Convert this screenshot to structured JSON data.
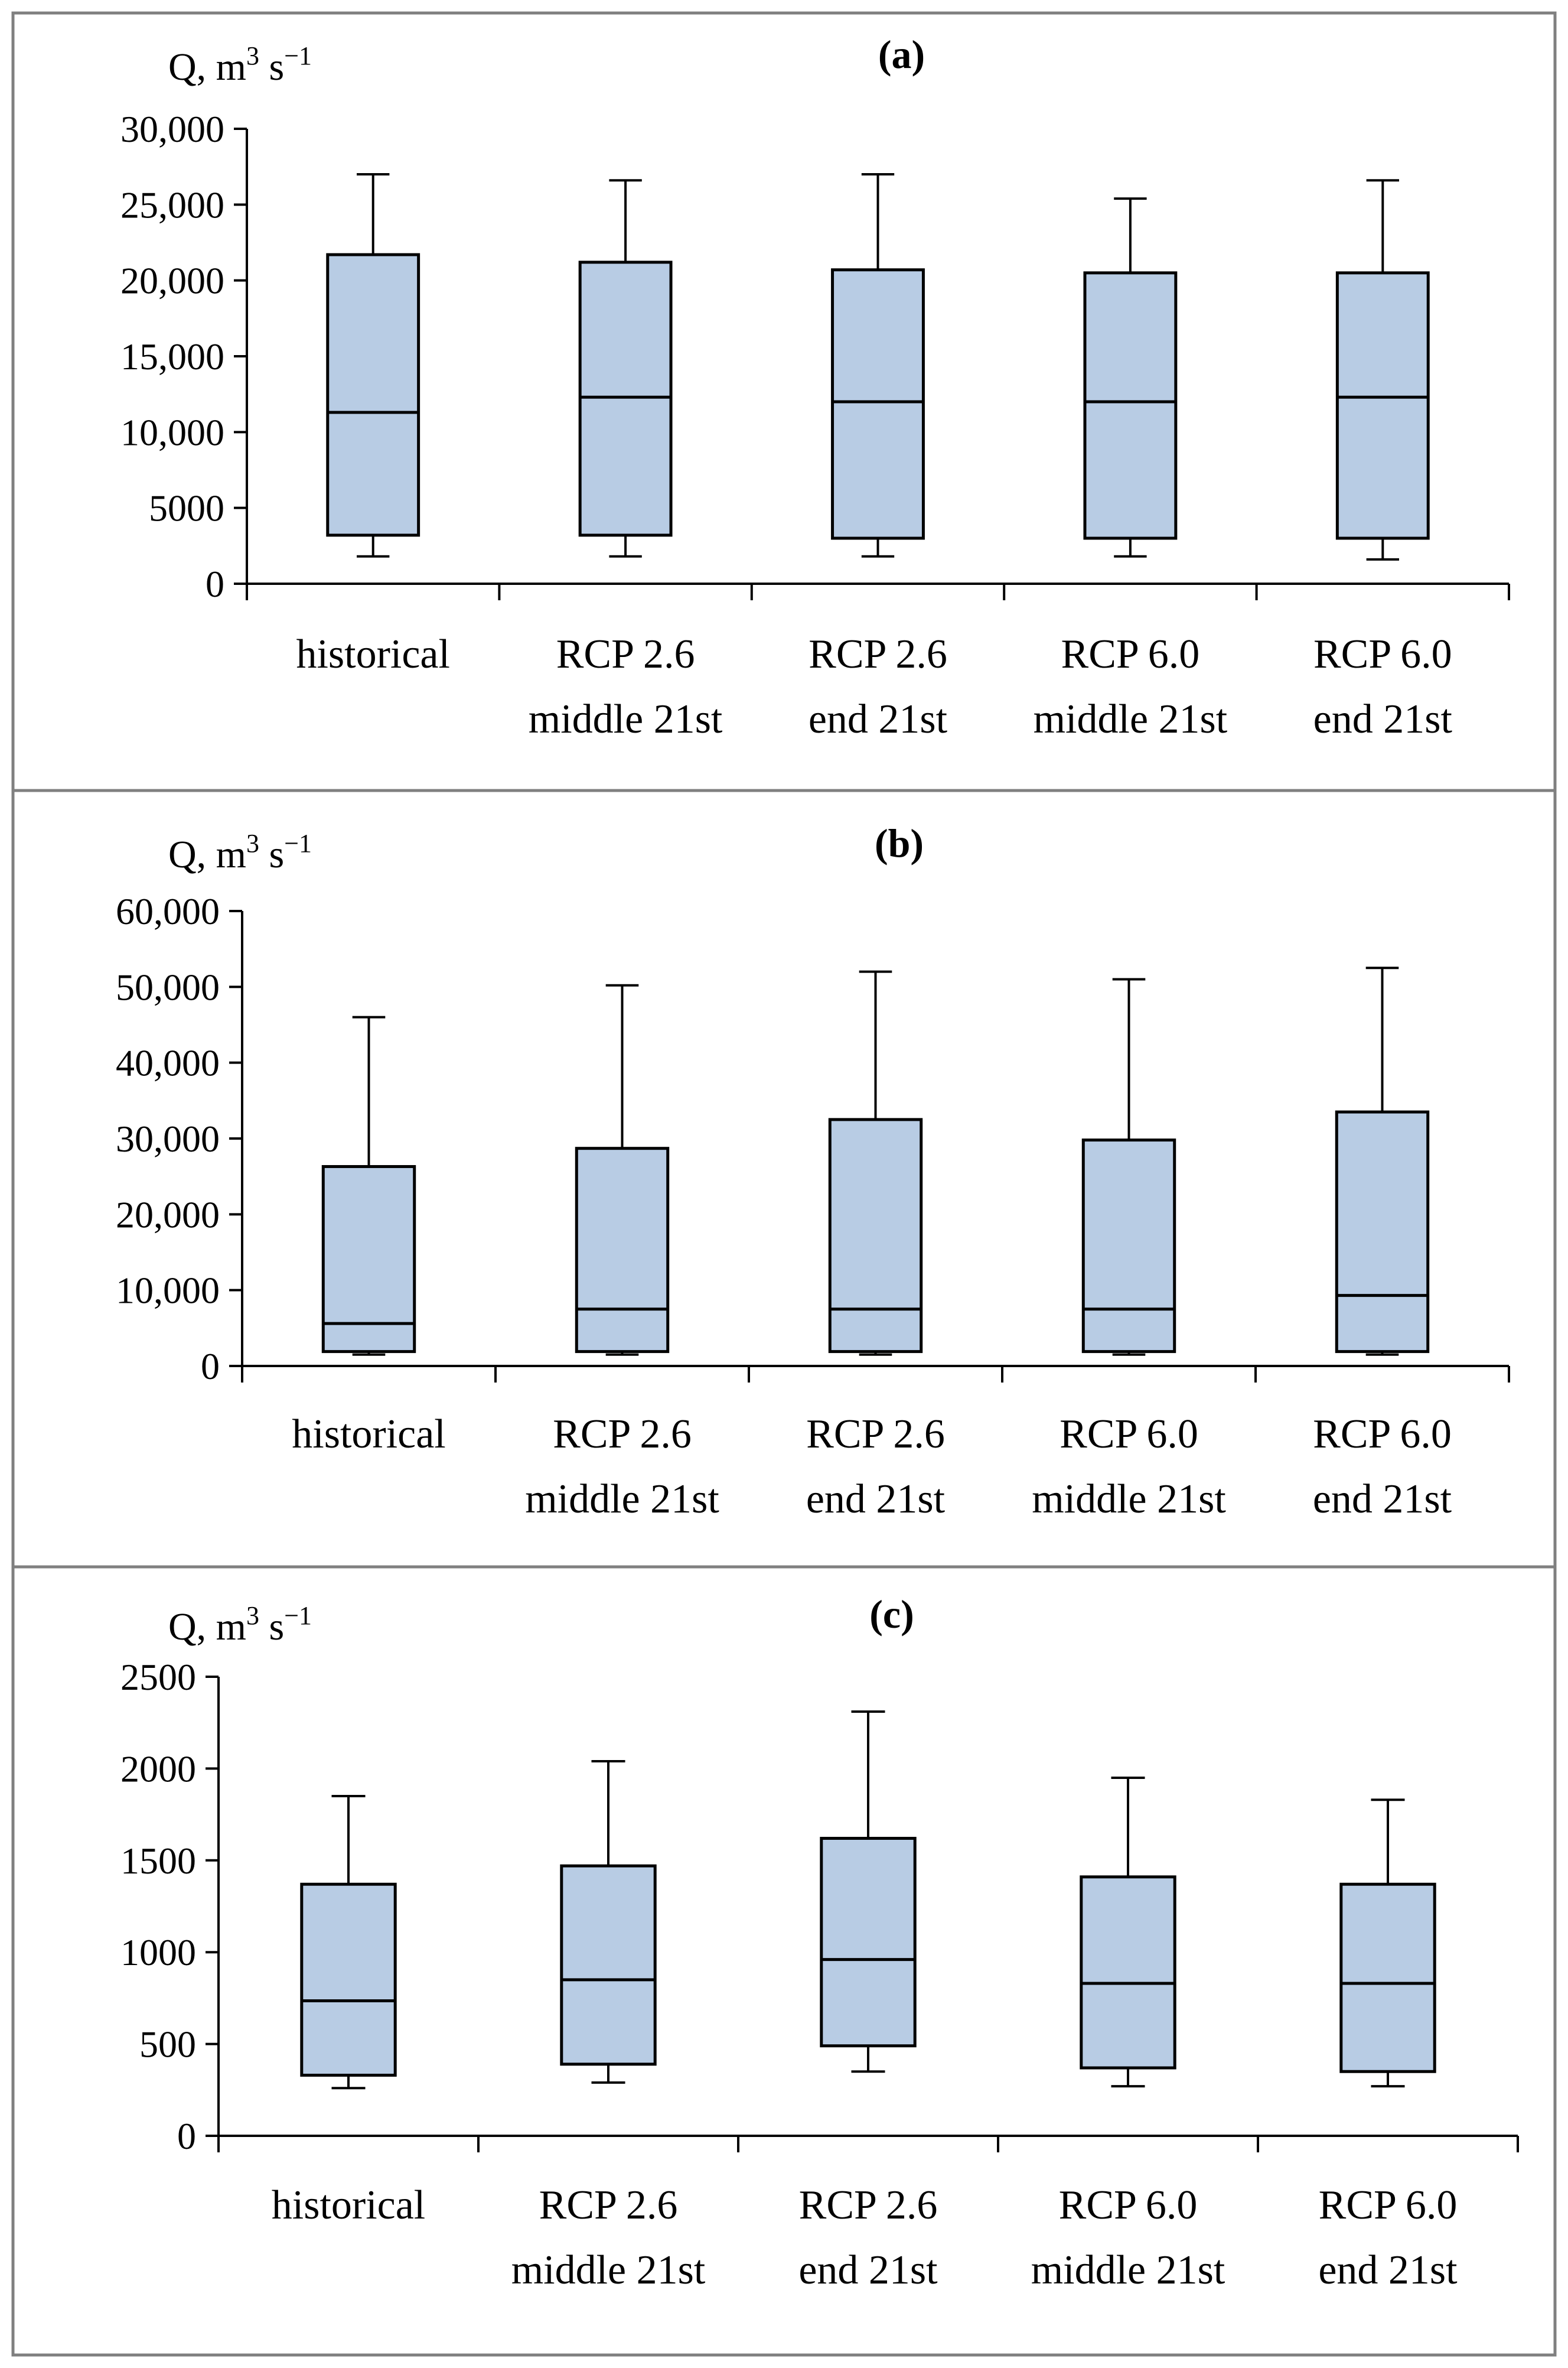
{
  "figure": {
    "colors": {
      "box_fill": "#b8cce4",
      "stroke": "#000000",
      "border": "#808080"
    }
  },
  "chart_data": [
    {
      "type": "boxplot",
      "title": "(a)",
      "ylabel_parts": {
        "base": "Q, m",
        "sup1": "3",
        "mid": " s",
        "sup2": "−1"
      },
      "ylim": [
        0,
        30000
      ],
      "yticks": [
        0,
        5000,
        10000,
        15000,
        20000,
        25000,
        30000
      ],
      "ytick_labels": [
        "0",
        "5000",
        "10,000",
        "15,000",
        "20,000",
        "25,000",
        "30,000"
      ],
      "categories": [
        [
          "historical"
        ],
        [
          "RCP 2.6",
          "middle 21st"
        ],
        [
          "RCP 2.6",
          "end 21st"
        ],
        [
          "RCP 6.0",
          "middle 21st"
        ],
        [
          "RCP 6.0",
          "end 21st"
        ]
      ],
      "boxes": [
        {
          "min": 1800,
          "q1": 3200,
          "median": 11300,
          "q3": 21700,
          "max": 27000
        },
        {
          "min": 1800,
          "q1": 3200,
          "median": 12300,
          "q3": 21200,
          "max": 26600
        },
        {
          "min": 1800,
          "q1": 3000,
          "median": 12000,
          "q3": 20700,
          "max": 27000
        },
        {
          "min": 1800,
          "q1": 3000,
          "median": 12000,
          "q3": 20500,
          "max": 25400
        },
        {
          "min": 1600,
          "q1": 3000,
          "median": 12300,
          "q3": 20500,
          "max": 26600
        }
      ]
    },
    {
      "type": "boxplot",
      "title": "(b)",
      "ylabel_parts": {
        "base": "Q, m",
        "sup1": "3",
        "mid": " s",
        "sup2": "−1"
      },
      "ylim": [
        0,
        60000
      ],
      "yticks": [
        0,
        10000,
        20000,
        30000,
        40000,
        50000,
        60000
      ],
      "ytick_labels": [
        "0",
        "10,000",
        "20,000",
        "30,000",
        "40,000",
        "50,000",
        "60,000"
      ],
      "categories": [
        [
          "historical"
        ],
        [
          "RCP 2.6",
          "middle 21st"
        ],
        [
          "RCP 2.6",
          "end 21st"
        ],
        [
          "RCP 6.0",
          "middle 21st"
        ],
        [
          "RCP 6.0",
          "end 21st"
        ]
      ],
      "boxes": [
        {
          "min": 1500,
          "q1": 1900,
          "median": 5600,
          "q3": 26300,
          "max": 46000
        },
        {
          "min": 1500,
          "q1": 1900,
          "median": 7500,
          "q3": 28700,
          "max": 50200
        },
        {
          "min": 1500,
          "q1": 1900,
          "median": 7500,
          "q3": 32500,
          "max": 52000
        },
        {
          "min": 1500,
          "q1": 1900,
          "median": 7500,
          "q3": 29800,
          "max": 51000
        },
        {
          "min": 1500,
          "q1": 1900,
          "median": 9300,
          "q3": 33500,
          "max": 52500
        }
      ]
    },
    {
      "type": "boxplot",
      "title": "(c)",
      "ylabel_parts": {
        "base": "Q, m",
        "sup1": "3",
        "mid": " s",
        "sup2": "−1"
      },
      "ylim": [
        0,
        2500
      ],
      "yticks": [
        0,
        500,
        1000,
        1500,
        2000,
        2500
      ],
      "ytick_labels": [
        "0",
        "500",
        "1000",
        "1500",
        "2000",
        "2500"
      ],
      "categories": [
        [
          "historical"
        ],
        [
          "RCP 2.6",
          "middle 21st"
        ],
        [
          "RCP 2.6",
          "end 21st"
        ],
        [
          "RCP 6.0",
          "middle 21st"
        ],
        [
          "RCP 6.0",
          "end 21st"
        ]
      ],
      "boxes": [
        {
          "min": 260,
          "q1": 330,
          "median": 735,
          "q3": 1370,
          "max": 1850
        },
        {
          "min": 290,
          "q1": 390,
          "median": 850,
          "q3": 1470,
          "max": 2040
        },
        {
          "min": 350,
          "q1": 490,
          "median": 960,
          "q3": 1620,
          "max": 2310
        },
        {
          "min": 270,
          "q1": 370,
          "median": 830,
          "q3": 1410,
          "max": 1950
        },
        {
          "min": 270,
          "q1": 350,
          "median": 830,
          "q3": 1370,
          "max": 1830
        }
      ]
    }
  ]
}
